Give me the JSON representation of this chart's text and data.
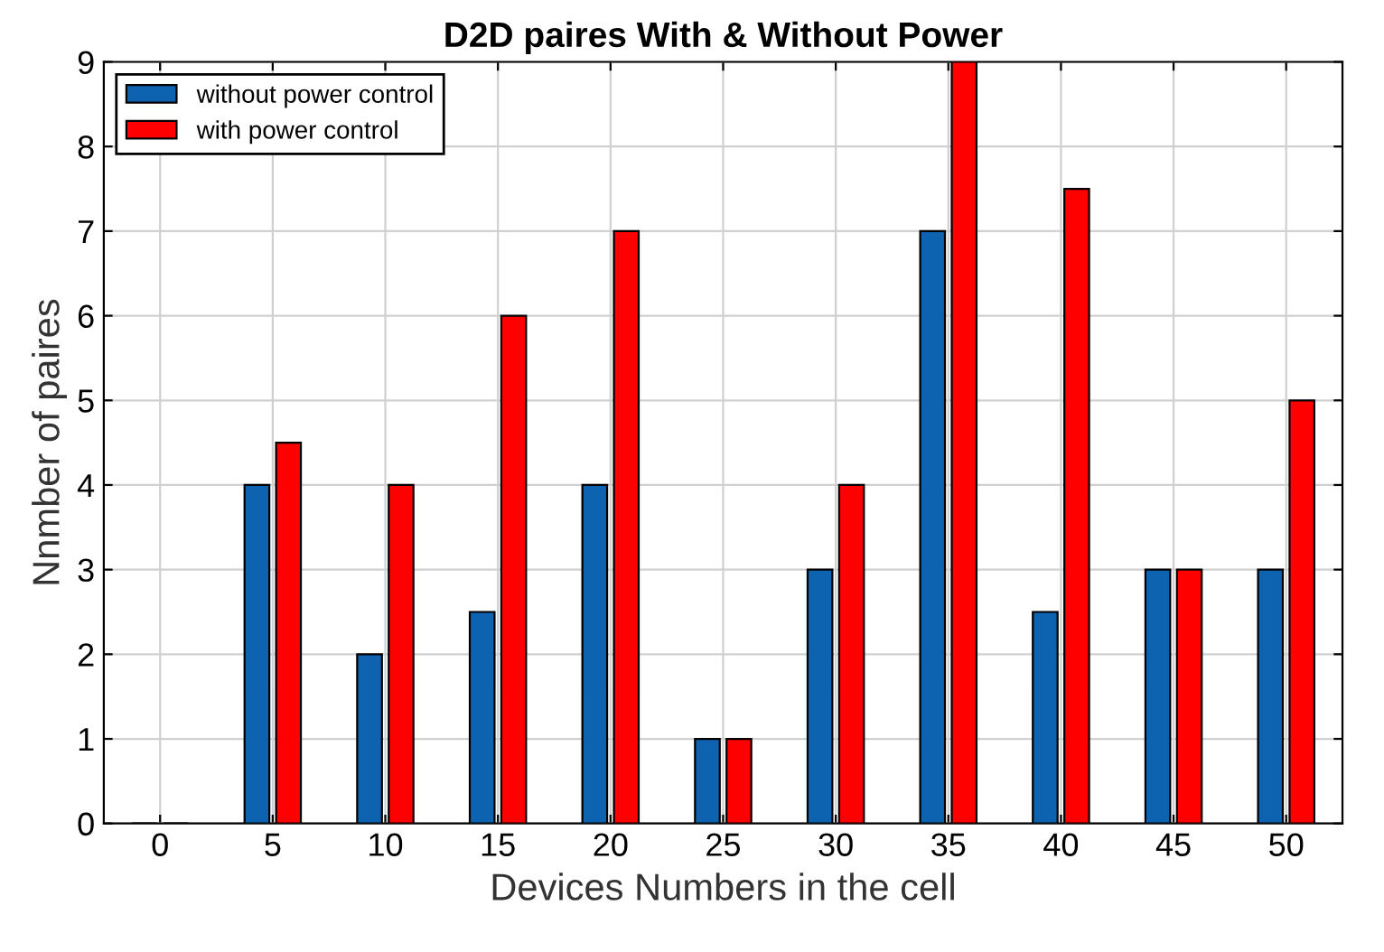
{
  "chart_data": {
    "type": "bar",
    "title": "D2D paires With & Without Power",
    "xlabel": "Devices Numbers in the cell",
    "ylabel": "Nnmber of paires",
    "categories": [
      "0",
      "5",
      "10",
      "15",
      "20",
      "25",
      "30",
      "35",
      "40",
      "45",
      "50"
    ],
    "series": [
      {
        "name": "without power control",
        "color": "#0e63b0",
        "values": [
          0,
          4,
          2,
          2.5,
          4,
          1,
          3,
          7,
          2.5,
          3,
          3
        ]
      },
      {
        "name": "with power control",
        "color": "#ff0000",
        "values": [
          0,
          4.5,
          4,
          6,
          7,
          1,
          4,
          9,
          7.5,
          3,
          5
        ]
      }
    ],
    "ylim": [
      0,
      9
    ],
    "yticks": [
      0,
      1,
      2,
      3,
      4,
      5,
      6,
      7,
      8,
      9
    ],
    "grid": true,
    "legend": "top left"
  }
}
